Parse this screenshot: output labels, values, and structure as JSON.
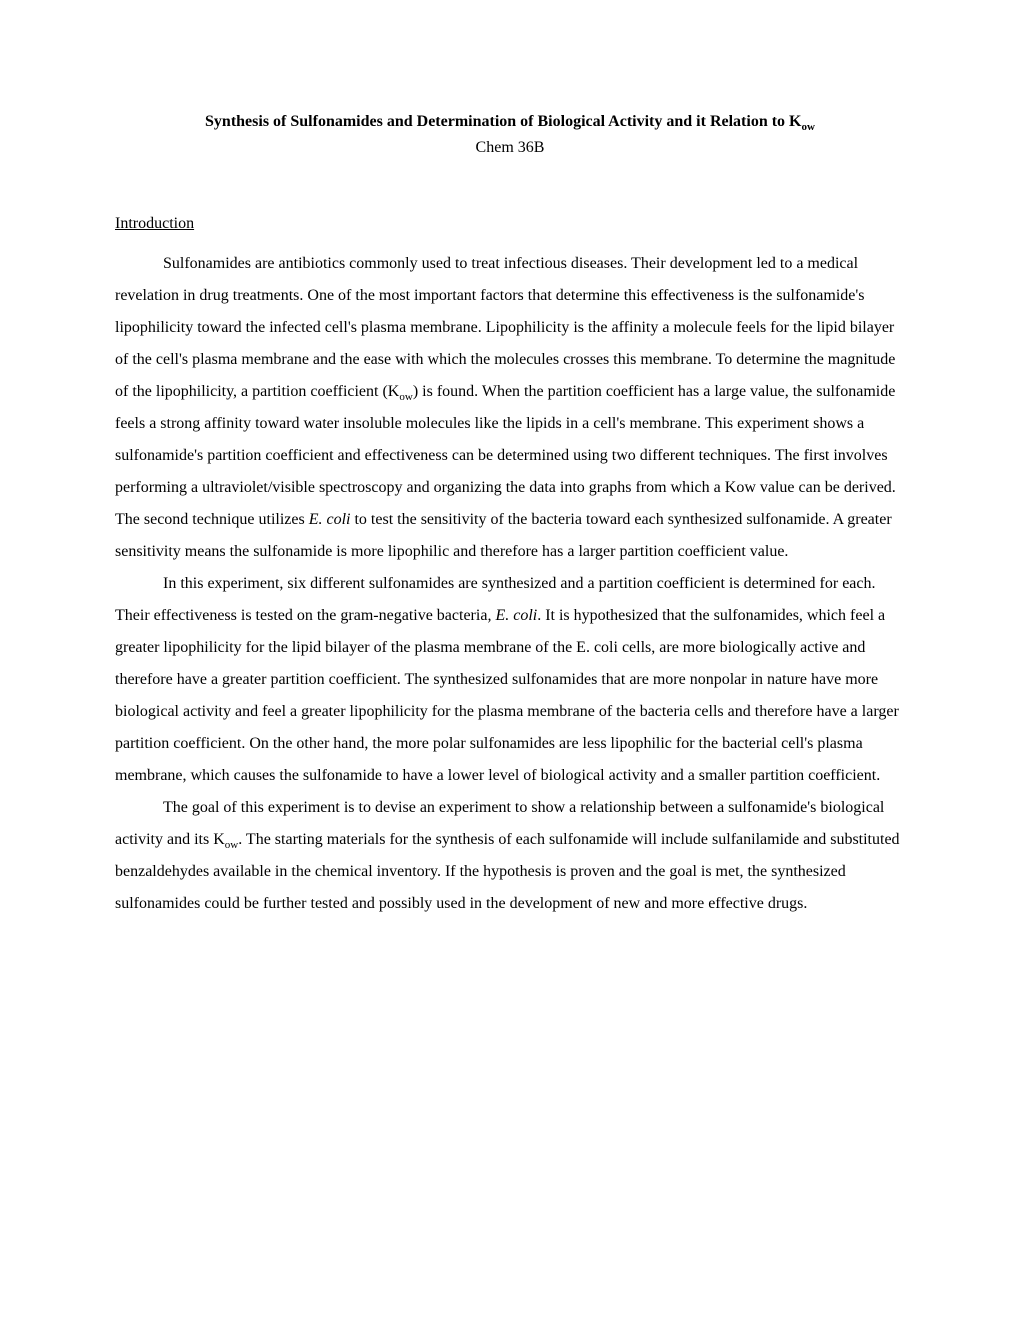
{
  "document": {
    "background_color": "#ffffff",
    "text_color": "#000000",
    "font_family": "Times New Roman",
    "body_fontsize": 16,
    "line_height": 2.0,
    "title_main": "Synthesis of Sulfonamides and Determination of Biological Activity and it Relation to K",
    "title_sub": "ow",
    "subtitle": "Chem 36B",
    "section_heading": "Introduction",
    "para1_a": "Sulfonamides are antibiotics commonly used to treat infectious diseases.  Their development led to a medical revelation in drug treatments.  One of the most important factors that determine this effectiveness is the sulfonamide's lipophilicity toward the infected cell's plasma membrane.  Lipophilicity is the affinity a molecule feels for the lipid bilayer of the cell's plasma membrane and the ease with which the molecules crosses this membrane.  To determine the magnitude of the lipophilicity, a partition coefficient (K",
    "para1_b": "ow",
    "para1_c": ") is found.  When the partition coefficient has a large value, the sulfonamide feels a strong affinity toward water insoluble molecules like the lipids in a cell's membrane.  This experiment shows a sulfonamide's partition coefficient and effectiveness can be determined using two different techniques.  The first involves performing a ultraviolet/visible spectroscopy and organizing the data into graphs from which a Kow value can be derived.  The second technique utilizes ",
    "para1_d": "E. coli",
    "para1_e": " to test the sensitivity of the bacteria toward each synthesized sulfonamide.  A greater sensitivity means the sulfonamide is more lipophilic and therefore has a larger partition coefficient value.",
    "para2_a": "In this experiment, six different sulfonamides are synthesized and a partition coefficient is determined for each.  Their effectiveness is tested on the gram-negative bacteria",
    "para2_b": ", E. coli",
    "para2_c": ".  It is hypothesized that the sulfonamides, which feel a greater lipophilicity for the lipid bilayer of the plasma membrane of the E. coli cells, are more biologically active and therefore have a greater partition coefficient.  The synthesized sulfonamides that are more nonpolar in nature have more biological activity and feel a greater lipophilicity for the plasma membrane of the bacteria cells and therefore have a larger partition coefficient.  On the other hand, the more polar sulfonamides are less lipophilic for the bacterial cell's plasma membrane, which causes the sulfonamide to have a lower level of biological activity and a smaller partition coefficient.",
    "para3_a": "The goal of this experiment is to devise an experiment to show a relationship between a sulfonamide's biological activity and its K",
    "para3_b": "ow",
    "para3_c": ".  The starting materials for the synthesis of each sulfonamide will include sulfanilamide and substituted benzaldehydes available in the chemical inventory.  If the hypothesis is proven and the goal is met, the synthesized sulfonamides could be further tested and possibly used in the development of new and more effective drugs."
  }
}
